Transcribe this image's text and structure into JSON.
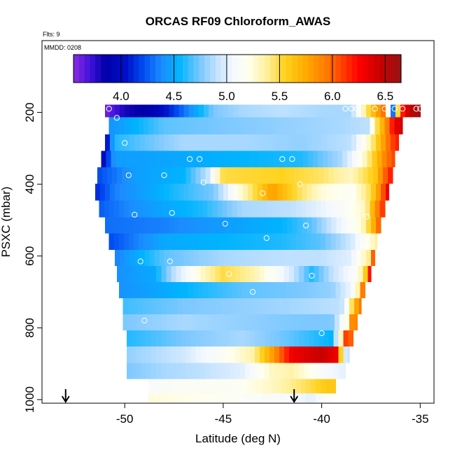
{
  "chart_data": {
    "type": "heatmap",
    "title": "ORCAS RF09 Chloroform_AWAS",
    "top_note": "Flts: 9",
    "date_note": "MMDD: 0208",
    "xlabel": "Latitude (deg N)",
    "ylabel": "PSXC (mbar)",
    "xlim": [
      -54.2,
      -34.3
    ],
    "ylim": [
      1010,
      0
    ],
    "x_ticks": [
      -50,
      -45,
      -40,
      -35
    ],
    "x_tick_labels": [
      "-50",
      "-45",
      "-40",
      "-35"
    ],
    "y_ticks": [
      200,
      400,
      600,
      800,
      1000
    ],
    "y_tick_labels": [
      "200",
      "400",
      "600",
      "800",
      "1000"
    ],
    "colorbar": {
      "min": 3.55,
      "max": 6.65,
      "ticks": [
        4.0,
        4.5,
        5.0,
        5.5,
        6.0,
        6.5
      ],
      "tick_labels": [
        "4.0",
        "4.5",
        "5.0",
        "5.5",
        "6.0",
        "6.5"
      ],
      "stops": [
        [
          3.55,
          "#8a2be2"
        ],
        [
          3.72,
          "#3a10d8"
        ],
        [
          3.85,
          "#0000a8"
        ],
        [
          4.05,
          "#0010c8"
        ],
        [
          4.2,
          "#0048f0"
        ],
        [
          4.38,
          "#1c8cff"
        ],
        [
          4.55,
          "#00b4ff"
        ],
        [
          4.75,
          "#7cc8ff"
        ],
        [
          4.92,
          "#c8e4ff"
        ],
        [
          5.05,
          "#f4f8ff"
        ],
        [
          5.2,
          "#fffff0"
        ],
        [
          5.38,
          "#fff09c"
        ],
        [
          5.55,
          "#ffd21e"
        ],
        [
          5.75,
          "#ffaa00"
        ],
        [
          5.95,
          "#ff7800"
        ],
        [
          6.1,
          "#ff3c00"
        ],
        [
          6.25,
          "#ff0000"
        ],
        [
          6.45,
          "#c80000"
        ],
        [
          6.65,
          "#961414"
        ]
      ]
    },
    "bands": [
      {
        "pressure": 190,
        "lat_start": -51.0,
        "lat_end": -35.0,
        "knots": [
          [
            -51.0,
            3.6
          ],
          [
            -50.0,
            3.8
          ],
          [
            -48.5,
            3.9
          ],
          [
            -47.0,
            4.3
          ],
          [
            -45.5,
            4.75
          ],
          [
            -44.0,
            4.85
          ],
          [
            -42.0,
            4.9
          ],
          [
            -40.0,
            4.85
          ],
          [
            -38.5,
            4.85
          ],
          [
            -37.5,
            5.6
          ],
          [
            -36.8,
            6.0
          ],
          [
            -36.4,
            4.2
          ],
          [
            -36.0,
            6.1
          ],
          [
            -35.5,
            6.5
          ],
          [
            -35.0,
            6.6
          ]
        ]
      },
      {
        "pressure": 237,
        "lat_start": -50.8,
        "lat_end": -35.9,
        "knots": [
          [
            -50.8,
            4.4
          ],
          [
            -48.0,
            4.7
          ],
          [
            -45.0,
            4.75
          ],
          [
            -42.0,
            4.8
          ],
          [
            -39.0,
            4.85
          ],
          [
            -37.6,
            4.9
          ],
          [
            -37.3,
            5.4
          ],
          [
            -36.8,
            5.8
          ],
          [
            -36.3,
            6.3
          ],
          [
            -35.9,
            6.45
          ]
        ]
      },
      {
        "pressure": 285,
        "lat_start": -51.0,
        "lat_end": -36.1,
        "knots": [
          [
            -51.0,
            3.9
          ],
          [
            -50.5,
            4.6
          ],
          [
            -47.0,
            4.85
          ],
          [
            -44.0,
            4.85
          ],
          [
            -41.0,
            4.8
          ],
          [
            -38.5,
            4.9
          ],
          [
            -37.6,
            5.3
          ],
          [
            -37.0,
            5.7
          ],
          [
            -36.5,
            6.05
          ],
          [
            -36.1,
            6.2
          ]
        ]
      },
      {
        "pressure": 330,
        "lat_start": -51.2,
        "lat_end": -36.3,
        "knots": [
          [
            -51.2,
            3.9
          ],
          [
            -50.5,
            4.45
          ],
          [
            -47.0,
            4.5
          ],
          [
            -44.0,
            4.55
          ],
          [
            -41.0,
            4.6
          ],
          [
            -39.0,
            4.85
          ],
          [
            -38.0,
            5.2
          ],
          [
            -37.3,
            5.6
          ],
          [
            -36.8,
            5.9
          ],
          [
            -36.3,
            6.1
          ]
        ]
      },
      {
        "pressure": 375,
        "lat_start": -51.4,
        "lat_end": -36.4,
        "knots": [
          [
            -51.4,
            4.2
          ],
          [
            -49.5,
            4.45
          ],
          [
            -47.0,
            4.55
          ],
          [
            -45.8,
            4.9
          ],
          [
            -45.0,
            5.5
          ],
          [
            -42.0,
            5.55
          ],
          [
            -40.0,
            5.45
          ],
          [
            -38.5,
            5.3
          ],
          [
            -37.3,
            5.6
          ],
          [
            -36.8,
            6.0
          ],
          [
            -36.4,
            6.25
          ]
        ]
      },
      {
        "pressure": 422,
        "lat_start": -51.5,
        "lat_end": -36.6,
        "knots": [
          [
            -51.5,
            4.1
          ],
          [
            -50.5,
            4.35
          ],
          [
            -48.0,
            4.55
          ],
          [
            -45.5,
            4.75
          ],
          [
            -44.0,
            5.3
          ],
          [
            -42.5,
            5.8
          ],
          [
            -41.5,
            5.55
          ],
          [
            -40.0,
            5.25
          ],
          [
            -38.5,
            5.15
          ],
          [
            -37.5,
            5.5
          ],
          [
            -37.0,
            5.9
          ],
          [
            -36.6,
            6.4
          ]
        ]
      },
      {
        "pressure": 470,
        "lat_start": -51.3,
        "lat_end": -36.8,
        "knots": [
          [
            -51.3,
            4.25
          ],
          [
            -49.5,
            4.4
          ],
          [
            -46.0,
            4.6
          ],
          [
            -44.0,
            4.85
          ],
          [
            -41.5,
            4.9
          ],
          [
            -39.0,
            5.1
          ],
          [
            -37.8,
            5.3
          ],
          [
            -37.3,
            5.8
          ],
          [
            -36.8,
            6.2
          ]
        ]
      },
      {
        "pressure": 515,
        "lat_start": -51.0,
        "lat_end": -37.0,
        "knots": [
          [
            -51.0,
            4.3
          ],
          [
            -48.0,
            4.35
          ],
          [
            -45.0,
            4.45
          ],
          [
            -42.0,
            4.55
          ],
          [
            -40.5,
            4.7
          ],
          [
            -39.0,
            5.05
          ],
          [
            -38.0,
            5.25
          ],
          [
            -37.5,
            5.6
          ],
          [
            -37.0,
            6.1
          ]
        ]
      },
      {
        "pressure": 560,
        "lat_start": -50.8,
        "lat_end": -37.2,
        "knots": [
          [
            -50.8,
            4.2
          ],
          [
            -48.0,
            4.5
          ],
          [
            -45.0,
            4.55
          ],
          [
            -42.0,
            4.6
          ],
          [
            -40.0,
            4.7
          ],
          [
            -38.5,
            4.95
          ],
          [
            -37.5,
            5.25
          ],
          [
            -37.2,
            5.4
          ]
        ]
      },
      {
        "pressure": 605,
        "lat_start": -50.5,
        "lat_end": -37.3,
        "knots": [
          [
            -50.5,
            4.35
          ],
          [
            -48.0,
            4.7
          ],
          [
            -45.0,
            4.85
          ],
          [
            -42.0,
            4.9
          ],
          [
            -40.0,
            4.9
          ],
          [
            -38.5,
            5.0
          ],
          [
            -37.6,
            5.4
          ],
          [
            -37.3,
            6.3
          ]
        ]
      },
      {
        "pressure": 650,
        "lat_start": -50.4,
        "lat_end": -37.5,
        "knots": [
          [
            -50.4,
            4.4
          ],
          [
            -48.5,
            4.5
          ],
          [
            -47.5,
            4.9
          ],
          [
            -46.0,
            5.3
          ],
          [
            -45.0,
            5.5
          ],
          [
            -43.5,
            5.35
          ],
          [
            -41.5,
            4.95
          ],
          [
            -40.5,
            4.6
          ],
          [
            -39.5,
            4.9
          ],
          [
            -38.2,
            5.15
          ],
          [
            -37.8,
            5.5
          ],
          [
            -37.5,
            6.45
          ]
        ]
      },
      {
        "pressure": 695,
        "lat_start": -50.3,
        "lat_end": -37.8,
        "knots": [
          [
            -50.3,
            4.4
          ],
          [
            -47.0,
            4.55
          ],
          [
            -44.0,
            4.7
          ],
          [
            -41.0,
            4.75
          ],
          [
            -39.5,
            4.8
          ],
          [
            -38.5,
            5.05
          ],
          [
            -38.1,
            5.4
          ],
          [
            -37.8,
            6.3
          ]
        ]
      },
      {
        "pressure": 740,
        "lat_start": -50.1,
        "lat_end": -38.0,
        "knots": [
          [
            -50.1,
            4.65
          ],
          [
            -47.0,
            4.75
          ],
          [
            -44.0,
            4.8
          ],
          [
            -41.0,
            4.85
          ],
          [
            -39.0,
            4.9
          ],
          [
            -38.6,
            5.3
          ],
          [
            -38.3,
            5.7
          ],
          [
            -38.0,
            6.0
          ]
        ]
      },
      {
        "pressure": 785,
        "lat_start": -50.1,
        "lat_end": -38.2,
        "knots": [
          [
            -50.1,
            4.75
          ],
          [
            -47.0,
            4.85
          ],
          [
            -44.0,
            4.8
          ],
          [
            -41.0,
            4.75
          ],
          [
            -39.5,
            4.75
          ],
          [
            -38.6,
            5.3
          ],
          [
            -38.4,
            6.2
          ],
          [
            -38.2,
            5.7
          ]
        ]
      },
      {
        "pressure": 830,
        "lat_start": -49.9,
        "lat_end": -38.4,
        "knots": [
          [
            -49.9,
            4.6
          ],
          [
            -47.0,
            4.75
          ],
          [
            -44.0,
            4.85
          ],
          [
            -41.5,
            4.7
          ],
          [
            -39.5,
            4.55
          ],
          [
            -38.9,
            5.5
          ],
          [
            -38.7,
            6.45
          ],
          [
            -38.4,
            5.7
          ]
        ]
      },
      {
        "pressure": 875,
        "lat_start": -49.9,
        "lat_end": -38.6,
        "knots": [
          [
            -49.9,
            4.8
          ],
          [
            -47.0,
            4.95
          ],
          [
            -45.0,
            5.15
          ],
          [
            -43.5,
            5.35
          ],
          [
            -42.5,
            5.8
          ],
          [
            -41.5,
            6.3
          ],
          [
            -40.0,
            6.45
          ],
          [
            -39.2,
            6.3
          ],
          [
            -38.9,
            5.0
          ],
          [
            -38.6,
            4.9
          ]
        ]
      },
      {
        "pressure": 920,
        "lat_start": -49.9,
        "lat_end": -38.8,
        "knots": [
          [
            -49.9,
            4.75
          ],
          [
            -48.0,
            4.85
          ],
          [
            -46.0,
            4.9
          ],
          [
            -44.0,
            5.0
          ],
          [
            -42.5,
            5.3
          ],
          [
            -41.5,
            5.35
          ],
          [
            -40.3,
            5.15
          ],
          [
            -39.5,
            5.05
          ],
          [
            -38.8,
            5.0
          ]
        ]
      },
      {
        "pressure": 965,
        "lat_start": -48.8,
        "lat_end": -39.3,
        "knots": [
          [
            -48.8,
            5.1
          ],
          [
            -46.5,
            5.15
          ],
          [
            -44.5,
            5.15
          ],
          [
            -42.5,
            5.3
          ],
          [
            -41.5,
            5.4
          ],
          [
            -40.5,
            5.5
          ],
          [
            -39.8,
            5.6
          ],
          [
            -39.3,
            5.6
          ]
        ]
      },
      {
        "pressure": 1000,
        "lat_start": -48.8,
        "lat_end": -39.5,
        "knots": [
          [
            -48.8,
            5.25
          ],
          [
            -46.0,
            5.2
          ],
          [
            -44.0,
            5.15
          ],
          [
            -42.0,
            5.1
          ],
          [
            -40.5,
            5.0
          ],
          [
            -39.5,
            5.2
          ]
        ]
      }
    ],
    "points": [
      [
        -50.8,
        190
      ],
      [
        -50.4,
        215
      ],
      [
        -50.0,
        285
      ],
      [
        -49.8,
        375
      ],
      [
        -49.5,
        485
      ],
      [
        -49.2,
        615
      ],
      [
        -49.0,
        780
      ],
      [
        -48.8,
        970
      ],
      [
        -48.5,
        990
      ],
      [
        -48.0,
        375
      ],
      [
        -47.7,
        615
      ],
      [
        -47.6,
        480
      ],
      [
        -46.7,
        330
      ],
      [
        -46.2,
        330
      ],
      [
        -46.0,
        395
      ],
      [
        -44.7,
        650
      ],
      [
        -44.9,
        510
      ],
      [
        -43.5,
        700
      ],
      [
        -43.0,
        425
      ],
      [
        -42.8,
        550
      ],
      [
        -42.0,
        330
      ],
      [
        -41.5,
        330
      ],
      [
        -41.1,
        400
      ],
      [
        -40.8,
        515
      ],
      [
        -40.5,
        655
      ],
      [
        -40.0,
        815
      ],
      [
        -38.8,
        190
      ],
      [
        -38.5,
        190
      ],
      [
        -38.2,
        190
      ],
      [
        -37.7,
        490
      ],
      [
        -37.9,
        570
      ],
      [
        -37.3,
        190
      ],
      [
        -36.8,
        190
      ],
      [
        -36.3,
        190
      ],
      [
        -35.9,
        190
      ],
      [
        -35.2,
        190
      ],
      [
        -35.0,
        190
      ],
      [
        -44.0,
        1000
      ],
      [
        -39.8,
        1000
      ],
      [
        -41.8,
        1000
      ]
    ],
    "arrows": [
      -53.0,
      -41.4
    ]
  }
}
